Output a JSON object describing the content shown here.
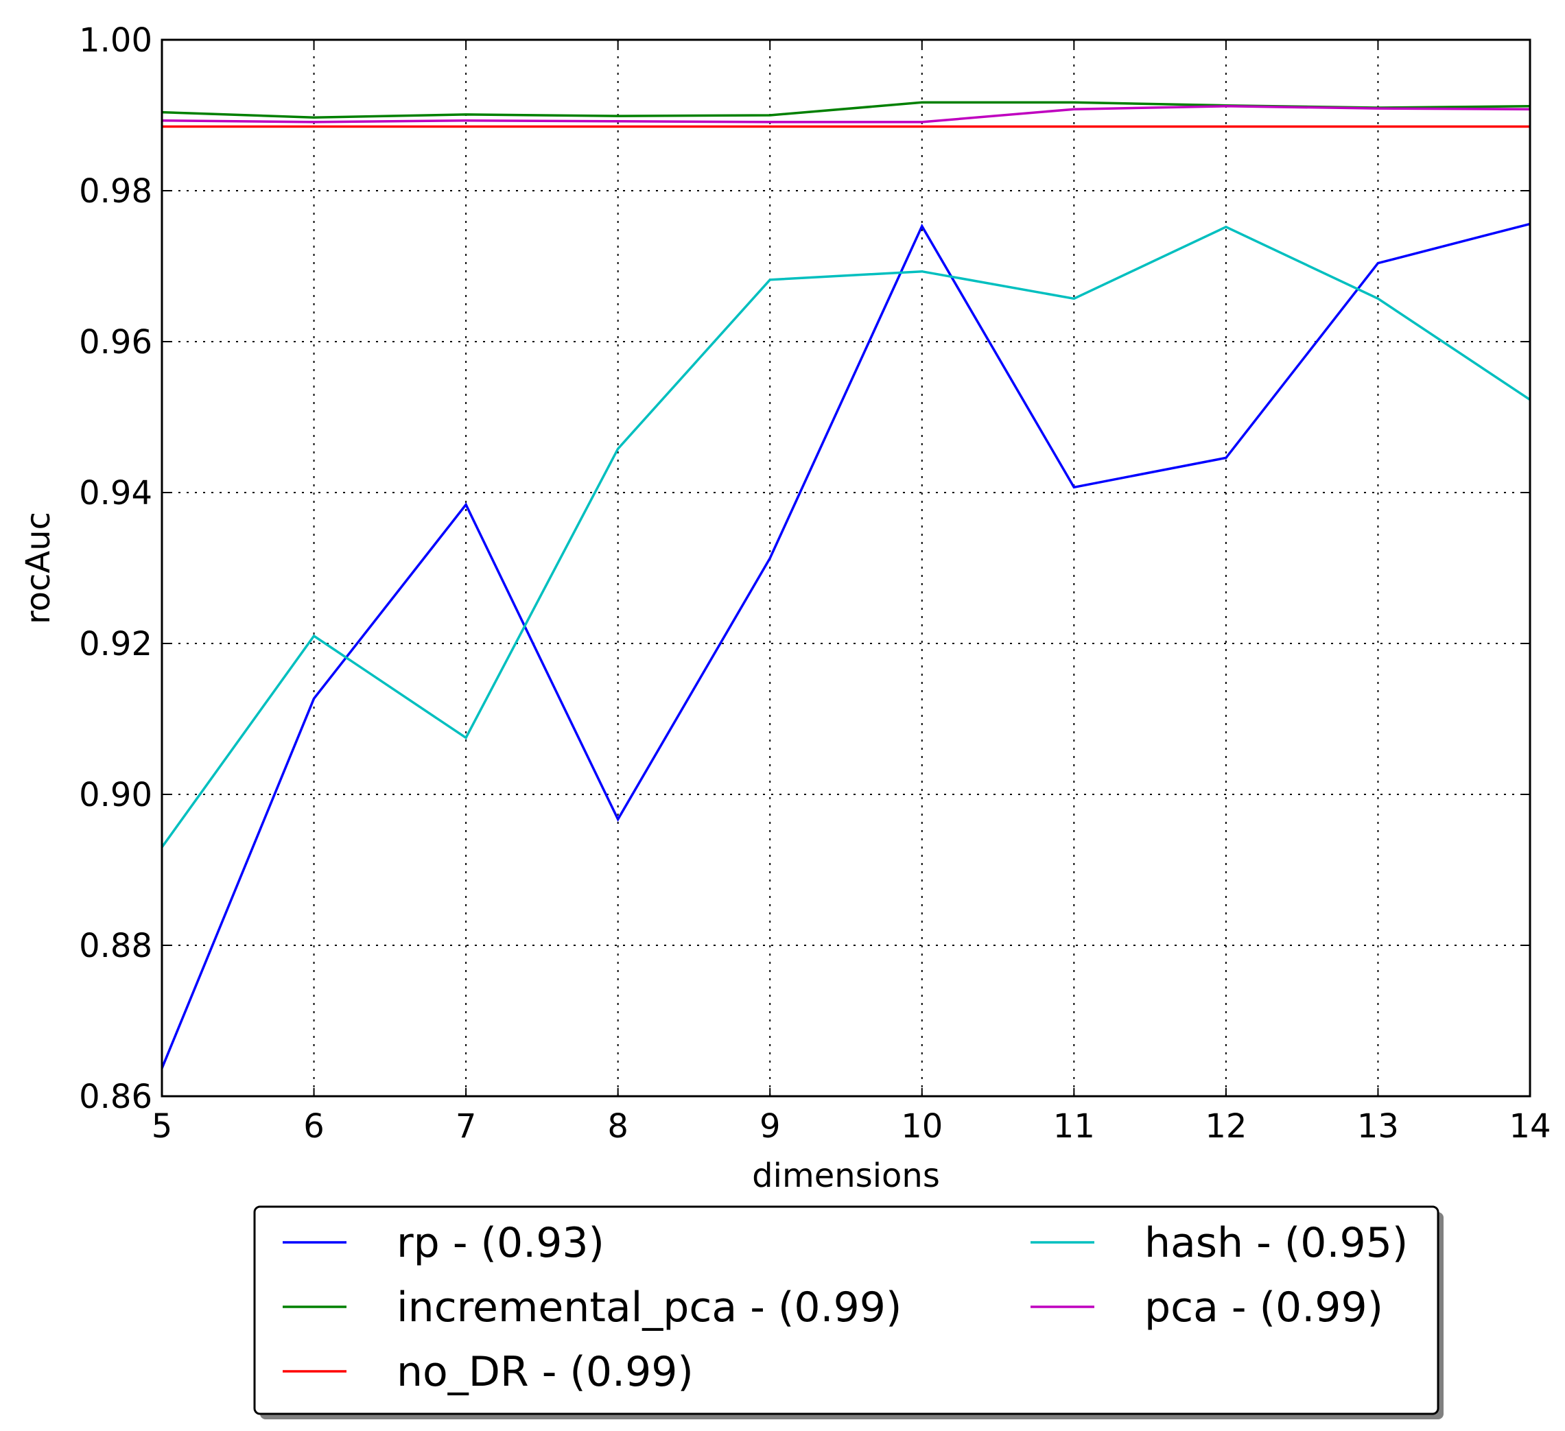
{
  "chart_data": {
    "type": "line",
    "title": "",
    "xlabel": "dimensions",
    "ylabel": "rocAuc",
    "xlim": [
      5,
      14
    ],
    "ylim": [
      0.86,
      1.0
    ],
    "xticks": [
      5,
      6,
      7,
      8,
      9,
      10,
      11,
      12,
      13,
      14
    ],
    "xtick_labels": [
      "5",
      "6",
      "7",
      "8",
      "9",
      "10",
      "11",
      "12",
      "13",
      "14"
    ],
    "yticks": [
      0.86,
      0.88,
      0.9,
      0.92,
      0.94,
      0.96,
      0.98,
      1.0
    ],
    "ytick_labels": [
      "0.86",
      "0.88",
      "0.90",
      "0.92",
      "0.94",
      "0.96",
      "0.98",
      "1.00"
    ],
    "grid": true,
    "legend_position": "below-plot",
    "x": [
      5,
      6,
      7,
      8,
      9,
      10,
      11,
      12,
      13,
      14
    ],
    "series": [
      {
        "name": "rp",
        "label": "rp - (0.93)",
        "color": "#0000ff",
        "values": [
          0.8637,
          0.9127,
          0.9384,
          0.8967,
          0.9313,
          0.9753,
          0.9407,
          0.9446,
          0.9704,
          0.9756
        ]
      },
      {
        "name": "incremental_pca",
        "label": "incremental_pca - (0.99)",
        "color": "#008000",
        "values": [
          0.9904,
          0.9897,
          0.9901,
          0.9899,
          0.99,
          0.9917,
          0.9917,
          0.9913,
          0.991,
          0.9912
        ]
      },
      {
        "name": "no_DR",
        "label": "no_DR - (0.99)",
        "color": "#ff0000",
        "values": [
          0.9885,
          0.9885,
          0.9885,
          0.9885,
          0.9885,
          0.9885,
          0.9885,
          0.9885,
          0.9885,
          0.9885
        ]
      },
      {
        "name": "hash",
        "label": "hash - (0.95)",
        "color": "#00bfbf",
        "values": [
          0.893,
          0.921,
          0.9075,
          0.9458,
          0.9682,
          0.9693,
          0.9657,
          0.9752,
          0.9657,
          0.9523
        ]
      },
      {
        "name": "pca",
        "label": "pca - (0.99)",
        "color": "#bf00bf",
        "values": [
          0.9893,
          0.9891,
          0.9893,
          0.9892,
          0.9891,
          0.9891,
          0.9908,
          0.9912,
          0.9909,
          0.9908
        ]
      }
    ]
  }
}
